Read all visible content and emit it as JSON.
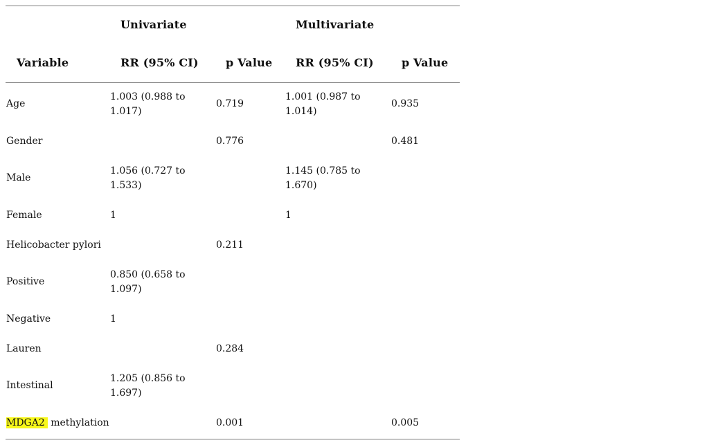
{
  "table": {
    "group_headers": {
      "univariate": "Univariate",
      "multivariate": "Multivariate"
    },
    "column_headers": {
      "variable": "Variable",
      "uni_rr": "RR (95% CI)",
      "uni_p": "p Value",
      "multi_rr": "RR (95% CI)",
      "multi_p": "p Value"
    },
    "rows": [
      {
        "variable": "Age",
        "uni_rr": "1.003 (0.988 to 1.017)",
        "uni_p": "0.719",
        "multi_rr": "1.001 (0.987 to 1.014)",
        "multi_p": "0.935"
      },
      {
        "variable": "Gender",
        "uni_rr": "",
        "uni_p": "0.776",
        "multi_rr": "",
        "multi_p": "0.481"
      },
      {
        "variable": "Male",
        "uni_rr": "1.056 (0.727 to 1.533)",
        "uni_p": "",
        "multi_rr": "1.145 (0.785 to 1.670)",
        "multi_p": ""
      },
      {
        "variable": "Female",
        "uni_rr": "1",
        "uni_p": "",
        "multi_rr": "1",
        "multi_p": ""
      },
      {
        "variable": "Helicobacter pylori",
        "uni_rr": "",
        "uni_p": "0.211",
        "multi_rr": "",
        "multi_p": ""
      },
      {
        "variable": "Positive",
        "uni_rr": "0.850 (0.658 to 1.097)",
        "uni_p": "",
        "multi_rr": "",
        "multi_p": ""
      },
      {
        "variable": "Negative",
        "uni_rr": "1",
        "uni_p": "",
        "multi_rr": "",
        "multi_p": ""
      },
      {
        "variable": "Lauren",
        "uni_rr": "",
        "uni_p": "0.284",
        "multi_rr": "",
        "multi_p": ""
      },
      {
        "variable": "Intestinal",
        "uni_rr": "1.205 (0.856 to 1.697)",
        "uni_p": "",
        "multi_rr": "",
        "multi_p": ""
      },
      {
        "variable_highlight": "MDGA2",
        "variable": " methylation",
        "uni_rr": "",
        "uni_p": "0.001",
        "multi_rr": "",
        "multi_p": "0.005"
      }
    ],
    "highlight_color": "#f7f71a"
  }
}
